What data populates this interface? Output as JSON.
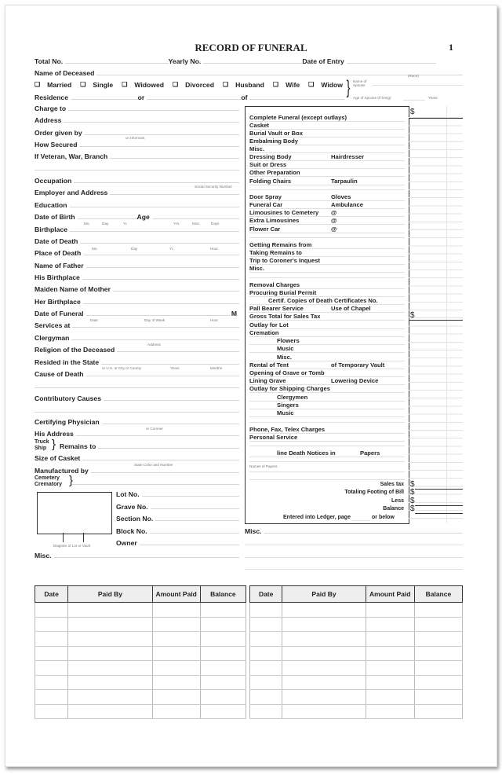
{
  "header": {
    "title": "RECORD OF FUNERAL",
    "page_number": "1"
  },
  "top_rows": [
    [
      {
        "label": "Total No."
      },
      {
        "label": "Yearly No."
      },
      {
        "label": "Date of Entry"
      }
    ],
    [
      {
        "label": "Name of Deceased"
      }
    ]
  ],
  "race_hint": "(Race)",
  "marital": {
    "options": [
      "Married",
      "Single",
      "Widowed",
      "Divorced",
      "Husband",
      "Wife",
      "Widow"
    ],
    "checkbox_glyph": "❑",
    "spouse_name_hint": "Name of Spouse",
    "age_of_spouse_hint": "Age of Spouse (if living)",
    "years_hint": "Years"
  },
  "residence_row": [
    {
      "label": "Residence"
    },
    {
      "label": "or"
    },
    {
      "label": "of"
    }
  ],
  "left_rows": [
    [
      {
        "label": "Charge to"
      }
    ],
    [
      {
        "label": "Address"
      }
    ],
    [
      {
        "label": "Order given by"
      }
    ],
    [
      {
        "label": "How Secured"
      }
    ],
    [
      {
        "label": "If Veteran, War, Branch"
      }
    ],
    [
      {
        "label": ""
      }
    ],
    [
      {
        "label": "Occupation"
      }
    ],
    [
      {
        "label": "Employer and Address"
      }
    ],
    [
      {
        "label": "Education"
      }
    ],
    [
      {
        "label": "Date of Birth"
      },
      {
        "label": "Age"
      }
    ],
    [
      {
        "label": "Birthplace"
      }
    ],
    [
      {
        "label": "Date of Death"
      }
    ],
    [
      {
        "label": "Place of Death"
      }
    ],
    [
      {
        "label": "Name of Father"
      }
    ],
    [
      {
        "label": "His Birthplace"
      }
    ],
    [
      {
        "label": "Maiden Name of Mother"
      }
    ],
    [
      {
        "label": "Her Birthplace"
      }
    ],
    [
      {
        "label": "Date of Funeral",
        "suffix": "M"
      }
    ],
    [
      {
        "label": "Services at"
      }
    ],
    [
      {
        "label": "Clergyman"
      }
    ],
    [
      {
        "label": "Religion of the Deceased"
      }
    ],
    [
      {
        "label": "Resided in the State"
      }
    ],
    [
      {
        "label": "Cause of Death"
      }
    ],
    [
      {
        "label": ""
      }
    ],
    [
      {
        "label": "Contributory Causes"
      }
    ],
    [
      {
        "label": ""
      }
    ],
    [
      {
        "label": "Certifying Physician"
      }
    ],
    [
      {
        "label": "His Address"
      }
    ],
    [
      {
        "label": "Remains to"
      }
    ],
    [
      {
        "label": "Size of Casket"
      }
    ],
    [
      {
        "label": "Manufactured by"
      }
    ],
    [
      {
        "label": ""
      }
    ]
  ],
  "truck_ship": [
    "Truck",
    "Ship"
  ],
  "cemetery_crematory": [
    "Cemetery",
    "Crematory"
  ],
  "hints": [
    "or informant",
    "Social Security Number",
    "Mo.",
    "Day.",
    "Yr.",
    "Yrs.",
    "Mos.",
    "Days",
    "Mo.",
    "Day",
    "Yr.",
    "Hour",
    "Date",
    "Day of Week",
    "Hour",
    "Address",
    "or U.S. or City or County",
    "Years",
    "Months",
    "or Coroner",
    "State Color and Number"
  ],
  "lot_rows": [
    "Lot No.",
    "Grave No.",
    "Section No.",
    "Block No.",
    "Owner"
  ],
  "diagram_caption": "Diagram of Lot or Vault",
  "misc_left": "Misc.",
  "misc_right": "Misc.",
  "charges": [
    [
      "Complete Funeral (except outlays)"
    ],
    [
      "Casket"
    ],
    [
      "Burial Vault or Box"
    ],
    [
      "Embalming Body"
    ],
    [
      "Misc."
    ],
    [
      "Dressing Body",
      "Hairdresser"
    ],
    [
      "Suit or Dress"
    ],
    [
      "Other Preparation"
    ],
    [
      "Folding Chairs",
      "Tarpaulin"
    ],
    [
      "Door Spray",
      "Gloves"
    ],
    [
      "Funeral Car",
      "Ambulance"
    ],
    [
      "Limousines to Cemetery",
      "@"
    ],
    [
      "Extra Limousines",
      "@"
    ],
    [
      "Flower Car",
      "@"
    ],
    [
      "Getting Remains from"
    ],
    [
      "Taking Remains to"
    ],
    [
      "Trip to Coroner's Inquest"
    ],
    [
      "Misc."
    ],
    [
      "Removal Charges"
    ],
    [
      "Procuring Burial Permit"
    ],
    [
      "Certif. Copies of Death Certificates No."
    ],
    [
      "Pall Bearer Service",
      "Use of Chapel"
    ],
    [
      "Gross Total for Sales Tax"
    ],
    [
      "Outlay for Lot"
    ],
    [
      "Cremation"
    ],
    [
      "Flowers"
    ],
    [
      "Music"
    ],
    [
      "Misc."
    ],
    [
      "Rental of Tent",
      "of Temporary Vault"
    ],
    [
      "Opening of Grave or Tomb"
    ],
    [
      "Lining Grave",
      "Lowering Device"
    ],
    [
      "Outlay for Shipping Charges"
    ],
    [
      "Clergymen"
    ],
    [
      "Singers"
    ],
    [
      "Music"
    ],
    [
      "Phone, Fax, Telex Charges"
    ],
    [
      "Personal Service"
    ],
    [
      "line Death Notices in",
      "Papers"
    ]
  ],
  "names_of_papers_hint": "Names of Papers",
  "totals": [
    "Sales tax",
    "Totaling Footing of Bill",
    "Less",
    "Balance"
  ],
  "currency_symbol": "$",
  "ledger_note": {
    "prefix": "Entered into Ledger,  page",
    "suffix": "or below"
  },
  "payments": {
    "headers": [
      "Date",
      "Paid By",
      "Amount Paid",
      "Balance"
    ],
    "row_count": 8
  }
}
